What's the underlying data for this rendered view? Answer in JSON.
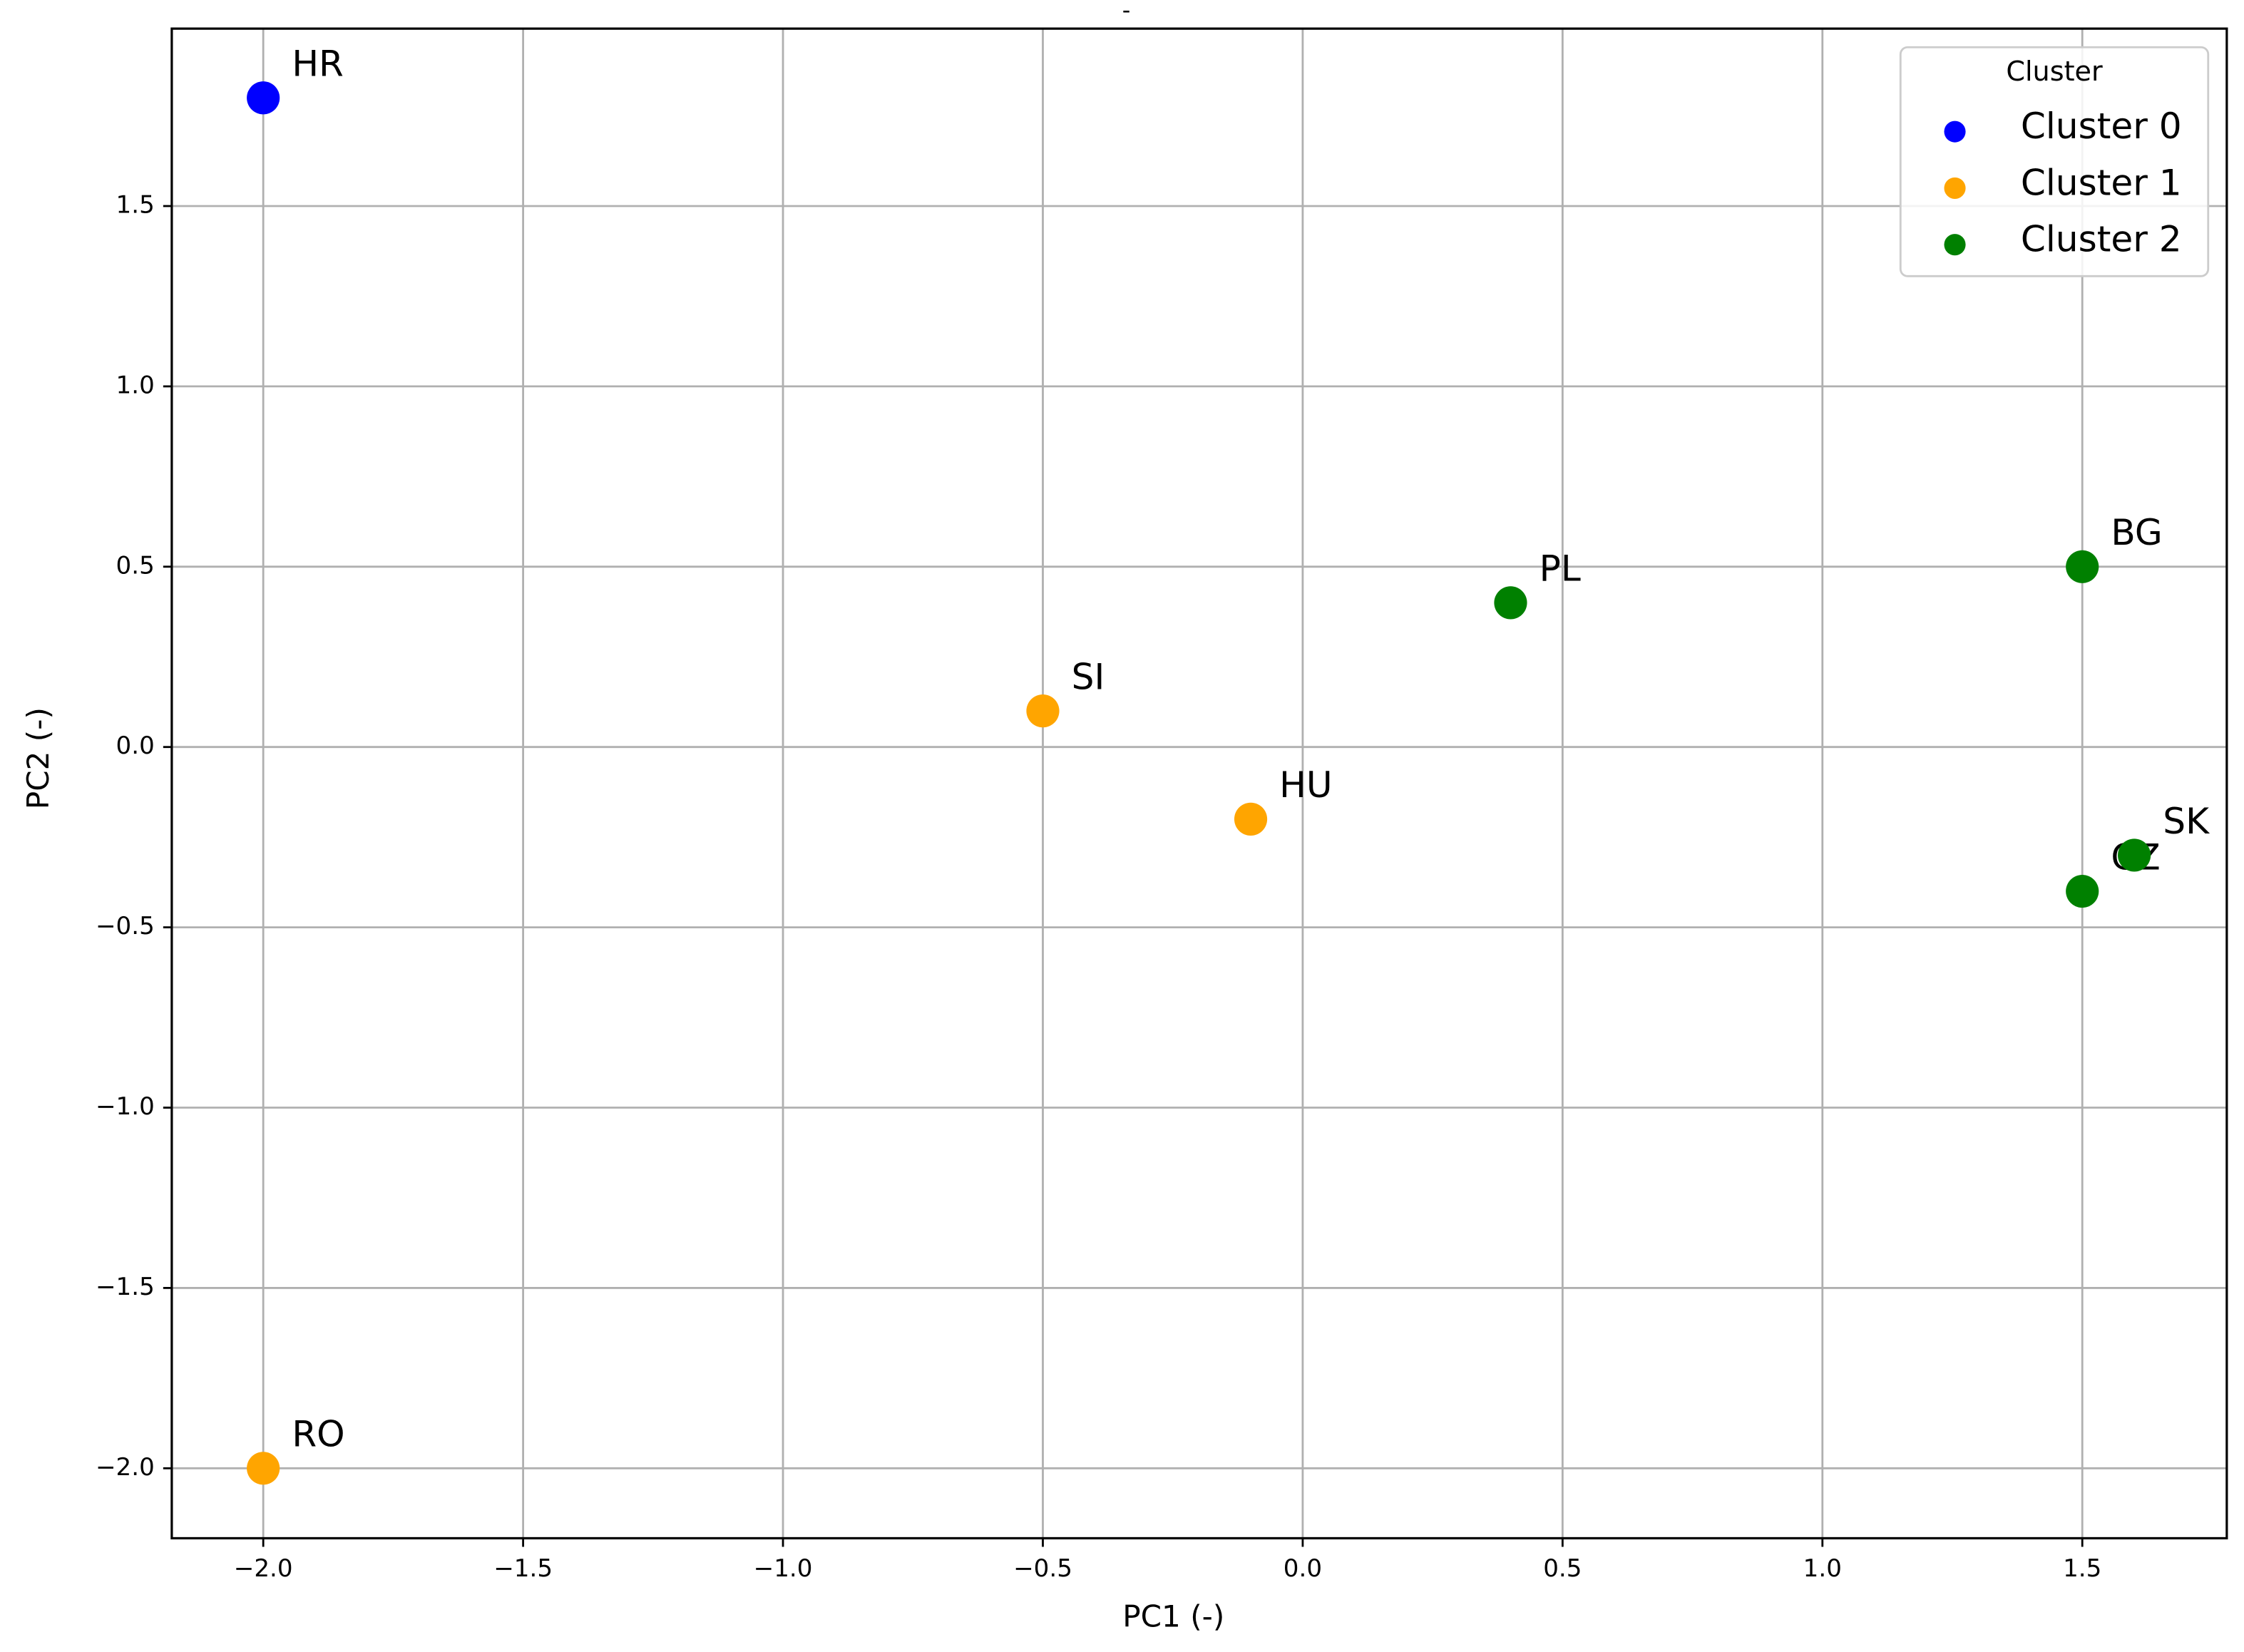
{
  "chart_data": {
    "type": "scatter",
    "title": "-",
    "x_label": "PC1   (-)",
    "y_label": "PC2   (-)",
    "legend_title": "Cluster",
    "legend_position": "upper right",
    "grid": true,
    "xlim": [
      -2.176,
      1.778
    ],
    "ylim": [
      -2.194,
      1.992
    ],
    "xticks": [
      {
        "value": -2.0,
        "label": "−2.0"
      },
      {
        "value": -1.5,
        "label": "−1.5"
      },
      {
        "value": -1.0,
        "label": "−1.0"
      },
      {
        "value": -0.5,
        "label": "−0.5"
      },
      {
        "value": 0,
        "label": "0.0"
      },
      0.5,
      {
        "value": 1.0,
        "label": "1.0"
      },
      1.5
    ],
    "yticks": [
      {
        "value": -2.0,
        "label": "−2.0"
      },
      {
        "value": -1.5,
        "label": "−1.5"
      },
      {
        "value": -1.0,
        "label": "−1.0"
      },
      {
        "value": -0.5,
        "label": "−0.5"
      },
      {
        "value": 0,
        "label": "0.0"
      },
      0.5,
      {
        "value": 1.0,
        "label": "1.0"
      },
      1.5
    ],
    "series": [
      {
        "name": "Cluster 0",
        "color": "#0000ff",
        "x": [
          -2.0
        ],
        "values": [
          1.8
        ],
        "labels": [
          "HR"
        ]
      },
      {
        "name": "Cluster 1",
        "color": "#ffa500",
        "x": [
          -0.5,
          -0.1,
          -2.0
        ],
        "values": [
          0.1,
          -0.2,
          -2.0
        ],
        "labels": [
          "SI",
          "HU",
          "RO"
        ]
      },
      {
        "name": "Cluster 2",
        "color": "#008000",
        "x": [
          0.4,
          1.5,
          1.5,
          1.6
        ],
        "values": [
          0.4,
          0.5,
          -0.4,
          -0.3
        ],
        "labels": [
          "PL",
          "BG",
          "CZ",
          "SK"
        ]
      }
    ]
  }
}
